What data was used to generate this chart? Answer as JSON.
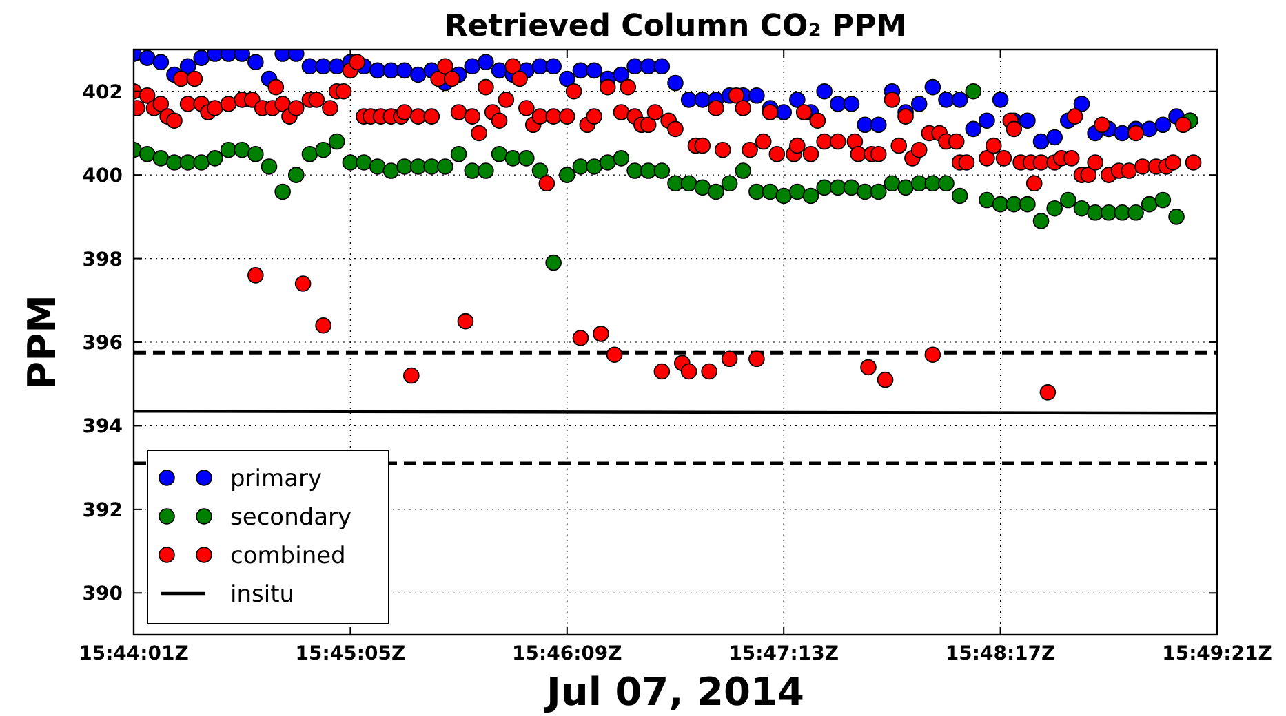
{
  "chart_data": {
    "type": "scatter",
    "title": "Retrieved Column CO₂ PPM",
    "xlabel": "Jul 07, 2014",
    "ylabel": "PPM",
    "x": [
      "2014-07-07T15:44:01",
      "2014-07-07T15:44:05",
      "2014-07-07T15:44:09",
      "2014-07-07T15:44:13",
      "2014-07-07T15:44:17",
      "2014-07-07T15:44:21",
      "2014-07-07T15:44:25",
      "2014-07-07T15:44:29",
      "2014-07-07T15:44:33",
      "2014-07-07T15:44:37",
      "2014-07-07T15:44:41",
      "2014-07-07T15:44:45",
      "2014-07-07T15:44:49",
      "2014-07-07T15:44:53",
      "2014-07-07T15:44:57",
      "2014-07-07T15:45:01",
      "2014-07-07T15:45:05",
      "2014-07-07T15:45:09",
      "2014-07-07T15:45:13",
      "2014-07-07T15:45:17",
      "2014-07-07T15:45:21",
      "2014-07-07T15:45:25",
      "2014-07-07T15:45:29",
      "2014-07-07T15:45:33",
      "2014-07-07T15:45:37",
      "2014-07-07T15:45:41",
      "2014-07-07T15:45:45",
      "2014-07-07T15:45:49",
      "2014-07-07T15:45:53",
      "2014-07-07T15:45:57",
      "2014-07-07T15:46:01",
      "2014-07-07T15:46:05",
      "2014-07-07T15:46:09",
      "2014-07-07T15:46:13",
      "2014-07-07T15:46:17",
      "2014-07-07T15:46:21",
      "2014-07-07T15:46:25",
      "2014-07-07T15:46:29",
      "2014-07-07T15:46:33",
      "2014-07-07T15:46:37",
      "2014-07-07T15:46:41",
      "2014-07-07T15:46:45",
      "2014-07-07T15:46:49",
      "2014-07-07T15:46:53",
      "2014-07-07T15:46:57",
      "2014-07-07T15:47:01",
      "2014-07-07T15:47:05",
      "2014-07-07T15:47:09",
      "2014-07-07T15:47:13",
      "2014-07-07T15:47:17",
      "2014-07-07T15:47:21",
      "2014-07-07T15:47:25",
      "2014-07-07T15:47:29",
      "2014-07-07T15:47:33",
      "2014-07-07T15:47:37",
      "2014-07-07T15:47:41",
      "2014-07-07T15:47:45",
      "2014-07-07T15:47:49",
      "2014-07-07T15:47:53",
      "2014-07-07T15:47:57",
      "2014-07-07T15:48:01",
      "2014-07-07T15:48:05",
      "2014-07-07T15:48:09",
      "2014-07-07T15:48:13",
      "2014-07-07T15:48:17",
      "2014-07-07T15:48:21",
      "2014-07-07T15:48:25",
      "2014-07-07T15:48:29",
      "2014-07-07T15:48:33",
      "2014-07-07T15:48:37",
      "2014-07-07T15:48:41",
      "2014-07-07T15:48:45",
      "2014-07-07T15:48:49",
      "2014-07-07T15:48:53",
      "2014-07-07T15:48:57",
      "2014-07-07T15:49:01",
      "2014-07-07T15:49:05",
      "2014-07-07T15:49:09",
      "2014-07-07T15:49:13"
    ],
    "series": [
      {
        "name": "primary",
        "color": "#0000ff",
        "values": [
          402.9,
          402.8,
          402.7,
          402.4,
          402.6,
          402.8,
          402.9,
          402.9,
          402.9,
          402.7,
          402.3,
          402.9,
          402.9,
          402.6,
          402.6,
          402.6,
          402.7,
          402.6,
          402.5,
          402.5,
          402.5,
          402.4,
          402.5,
          402.2,
          402.4,
          402.6,
          402.7,
          402.5,
          402.4,
          402.5,
          402.6,
          402.6,
          402.3,
          402.5,
          402.5,
          402.3,
          402.4,
          402.6,
          402.6,
          402.6,
          402.2,
          401.8,
          401.8,
          401.8,
          401.9,
          401.9,
          401.9,
          401.6,
          401.5,
          401.8,
          401.5,
          402.0,
          401.7,
          401.7,
          401.2,
          401.2,
          402.0,
          401.5,
          401.7,
          402.1,
          401.8,
          401.8,
          401.1,
          401.3,
          401.8,
          401.3,
          401.3,
          400.8,
          400.9,
          401.3,
          401.7,
          401.0,
          401.1,
          401.0,
          401.1,
          401.1,
          401.2,
          401.4,
          401.3
        ]
      },
      {
        "name": "secondary",
        "color": "#008000",
        "values": [
          400.6,
          400.5,
          400.4,
          400.3,
          400.3,
          400.3,
          400.4,
          400.6,
          400.6,
          400.5,
          400.2,
          399.6,
          400.0,
          400.5,
          400.6,
          400.8,
          400.3,
          400.3,
          400.2,
          400.1,
          400.2,
          400.2,
          400.2,
          400.2,
          400.5,
          400.1,
          400.1,
          400.5,
          400.4,
          400.4,
          400.1,
          397.9,
          400.0,
          400.2,
          400.2,
          400.3,
          400.4,
          400.1,
          400.1,
          400.1,
          399.8,
          399.8,
          399.7,
          399.6,
          399.8,
          400.1,
          399.6,
          399.6,
          399.5,
          399.6,
          399.5,
          399.7,
          399.7,
          399.7,
          399.6,
          399.6,
          399.8,
          399.7,
          399.8,
          399.8,
          399.8,
          399.5,
          402.0,
          399.4,
          399.3,
          399.3,
          399.3,
          398.9,
          399.2,
          399.4,
          399.2,
          399.1,
          399.1,
          399.1,
          399.1,
          399.3,
          399.4,
          399.0,
          401.3
        ]
      },
      {
        "name": "combined",
        "color": "#ff0000",
        "x": [
          "2014-07-07T15:44:01",
          "2014-07-07T15:44:02",
          "2014-07-07T15:44:05",
          "2014-07-07T15:44:07",
          "2014-07-07T15:44:09",
          "2014-07-07T15:44:11",
          "2014-07-07T15:44:13",
          "2014-07-07T15:44:15",
          "2014-07-07T15:44:17",
          "2014-07-07T15:44:19",
          "2014-07-07T15:44:21",
          "2014-07-07T15:44:23",
          "2014-07-07T15:44:25",
          "2014-07-07T15:44:29",
          "2014-07-07T15:44:33",
          "2014-07-07T15:44:36",
          "2014-07-07T15:44:37",
          "2014-07-07T15:44:39",
          "2014-07-07T15:44:42",
          "2014-07-07T15:44:43",
          "2014-07-07T15:44:45",
          "2014-07-07T15:44:47",
          "2014-07-07T15:44:49",
          "2014-07-07T15:44:51",
          "2014-07-07T15:44:53",
          "2014-07-07T15:44:55",
          "2014-07-07T15:44:57",
          "2014-07-07T15:44:59",
          "2014-07-07T15:45:01",
          "2014-07-07T15:45:03",
          "2014-07-07T15:45:05",
          "2014-07-07T15:45:07",
          "2014-07-07T15:45:09",
          "2014-07-07T15:45:11",
          "2014-07-07T15:45:14",
          "2014-07-07T15:45:17",
          "2014-07-07T15:45:20",
          "2014-07-07T15:45:21",
          "2014-07-07T15:45:23",
          "2014-07-07T15:45:25",
          "2014-07-07T15:45:29",
          "2014-07-07T15:45:31",
          "2014-07-07T15:45:33",
          "2014-07-07T15:45:35",
          "2014-07-07T15:45:37",
          "2014-07-07T15:45:39",
          "2014-07-07T15:45:41",
          "2014-07-07T15:45:43",
          "2014-07-07T15:45:45",
          "2014-07-07T15:45:47",
          "2014-07-07T15:45:49",
          "2014-07-07T15:45:51",
          "2014-07-07T15:45:53",
          "2014-07-07T15:45:55",
          "2014-07-07T15:45:57",
          "2014-07-07T15:45:59",
          "2014-07-07T15:46:01",
          "2014-07-07T15:46:03",
          "2014-07-07T15:46:05",
          "2014-07-07T15:46:09",
          "2014-07-07T15:46:11",
          "2014-07-07T15:46:13",
          "2014-07-07T15:46:15",
          "2014-07-07T15:46:17",
          "2014-07-07T15:46:19",
          "2014-07-07T15:46:21",
          "2014-07-07T15:46:23",
          "2014-07-07T15:46:25",
          "2014-07-07T15:46:27",
          "2014-07-07T15:46:29",
          "2014-07-07T15:46:31",
          "2014-07-07T15:46:33",
          "2014-07-07T15:46:35",
          "2014-07-07T15:46:37",
          "2014-07-07T15:46:39",
          "2014-07-07T15:46:41",
          "2014-07-07T15:46:43",
          "2014-07-07T15:46:45",
          "2014-07-07T15:46:47",
          "2014-07-07T15:46:49",
          "2014-07-07T15:46:51",
          "2014-07-07T15:46:53",
          "2014-07-07T15:46:55",
          "2014-07-07T15:46:57",
          "2014-07-07T15:46:59",
          "2014-07-07T15:47:01",
          "2014-07-07T15:47:03",
          "2014-07-07T15:47:05",
          "2014-07-07T15:47:07",
          "2014-07-07T15:47:09",
          "2014-07-07T15:47:11",
          "2014-07-07T15:47:16",
          "2014-07-07T15:47:17",
          "2014-07-07T15:47:19",
          "2014-07-07T15:47:21",
          "2014-07-07T15:47:23",
          "2014-07-07T15:47:25",
          "2014-07-07T15:47:29",
          "2014-07-07T15:47:34",
          "2014-07-07T15:47:35",
          "2014-07-07T15:47:38",
          "2014-07-07T15:47:39",
          "2014-07-07T15:47:41",
          "2014-07-07T15:47:43",
          "2014-07-07T15:47:45",
          "2014-07-07T15:47:47",
          "2014-07-07T15:47:49",
          "2014-07-07T15:47:51",
          "2014-07-07T15:47:53",
          "2014-07-07T15:47:56",
          "2014-07-07T15:47:57",
          "2014-07-07T15:47:59",
          "2014-07-07T15:48:01",
          "2014-07-07T15:48:04",
          "2014-07-07T15:48:05",
          "2014-07-07T15:48:07",
          "2014-07-07T15:48:13",
          "2014-07-07T15:48:15",
          "2014-07-07T15:48:18",
          "2014-07-07T15:48:20",
          "2014-07-07T15:48:21",
          "2014-07-07T15:48:23",
          "2014-07-07T15:48:26",
          "2014-07-07T15:48:27",
          "2014-07-07T15:48:29",
          "2014-07-07T15:48:31",
          "2014-07-07T15:48:33",
          "2014-07-07T15:48:35",
          "2014-07-07T15:48:38",
          "2014-07-07T15:48:39",
          "2014-07-07T15:48:41",
          "2014-07-07T15:48:43",
          "2014-07-07T15:48:45",
          "2014-07-07T15:48:47",
          "2014-07-07T15:48:49",
          "2014-07-07T15:48:52",
          "2014-07-07T15:48:55",
          "2014-07-07T15:48:57",
          "2014-07-07T15:48:59",
          "2014-07-07T15:49:03",
          "2014-07-07T15:49:06",
          "2014-07-07T15:49:08",
          "2014-07-07T15:49:11",
          "2014-07-07T15:49:14"
        ],
        "values": [
          402.0,
          401.6,
          401.9,
          401.6,
          401.7,
          401.4,
          401.3,
          402.3,
          401.7,
          402.3,
          401.7,
          401.5,
          401.6,
          401.7,
          401.8,
          401.8,
          397.6,
          401.6,
          401.6,
          402.1,
          401.7,
          401.4,
          401.6,
          397.4,
          401.8,
          401.8,
          396.4,
          401.6,
          402.0,
          402.0,
          402.5,
          402.7,
          401.4,
          401.4,
          401.4,
          401.4,
          401.4,
          401.5,
          395.2,
          401.4,
          401.4,
          402.3,
          402.6,
          402.3,
          401.5,
          396.5,
          401.4,
          401.0,
          402.1,
          401.5,
          401.3,
          401.8,
          402.6,
          402.3,
          401.6,
          401.2,
          401.4,
          399.8,
          401.4,
          401.4,
          402.0,
          396.1,
          401.2,
          401.4,
          396.2,
          402.1,
          395.7,
          401.5,
          402.1,
          401.4,
          401.2,
          401.2,
          401.5,
          395.3,
          401.3,
          401.1,
          395.5,
          395.3,
          400.7,
          400.7,
          395.3,
          401.6,
          400.6,
          395.6,
          401.9,
          401.6,
          400.6,
          395.6,
          400.8,
          401.5,
          400.5,
          400.5,
          400.7,
          401.5,
          400.5,
          401.3,
          400.8,
          400.8,
          400.8,
          400.5,
          395.4,
          400.5,
          400.5,
          395.1,
          401.8,
          400.7,
          401.4,
          400.4,
          400.6,
          401.0,
          395.7,
          401.0,
          400.8,
          400.8,
          400.3,
          400.3,
          400.4,
          400.7,
          400.4,
          401.3,
          401.1,
          400.3,
          400.3,
          399.8,
          400.3,
          394.8,
          400.3,
          400.4,
          400.4,
          401.4,
          400.0,
          400.0,
          400.3,
          401.2,
          400.0,
          400.1,
          400.1,
          401.0,
          400.2,
          400.2,
          400.2,
          400.3,
          401.2,
          400.3
        ]
      },
      {
        "name": "insitu",
        "type": "line",
        "color": "#000000",
        "line_style": "solid",
        "marker": "none",
        "x": [
          "2014-07-07T15:44:01",
          "2014-07-07T15:49:21"
        ],
        "values": [
          394.35,
          394.3
        ]
      }
    ],
    "ref_lines": [
      {
        "axis": "y",
        "value": 395.75,
        "color": "#000000",
        "line_style": "dashed"
      },
      {
        "axis": "y",
        "value": 393.1,
        "color": "#000000",
        "line_style": "dashed"
      }
    ],
    "xlim": [
      "2014-07-07T15:44:01",
      "2014-07-07T15:49:21"
    ],
    "xticks": [
      {
        "value": "2014-07-07T15:44:01",
        "label": "15:44:01Z"
      },
      {
        "value": "2014-07-07T15:45:05",
        "label": "15:45:05Z"
      },
      {
        "value": "2014-07-07T15:46:09",
        "label": "15:46:09Z"
      },
      {
        "value": "2014-07-07T15:47:13",
        "label": "15:47:13Z"
      },
      {
        "value": "2014-07-07T15:48:17",
        "label": "15:48:17Z"
      },
      {
        "value": "2014-07-07T15:49:21",
        "label": "15:49:21Z"
      }
    ],
    "ylim": [
      389,
      403
    ],
    "yticks": [
      390,
      392,
      394,
      396,
      398,
      400,
      402
    ],
    "grid": true,
    "legend": "bottom left",
    "marker": "circle"
  }
}
